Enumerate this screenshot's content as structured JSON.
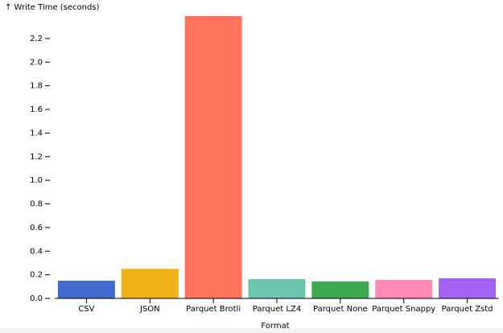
{
  "chart_data": {
    "type": "bar",
    "y_label": "↑ Write Time (seconds)",
    "x_label": "Format",
    "categories": [
      "CSV",
      "JSON",
      "Parquet Brotli",
      "Parquet LZ4",
      "Parquet None",
      "Parquet Snappy",
      "Parquet Zstd"
    ],
    "values": [
      0.15,
      0.25,
      2.39,
      0.163,
      0.143,
      0.157,
      0.17
    ],
    "colors": [
      "#4269d0",
      "#efb118",
      "#ff725c",
      "#6cc5b0",
      "#3ca951",
      "#ff8ab7",
      "#a463f2"
    ],
    "ylim": [
      0,
      2.39
    ],
    "yticks": [
      {
        "value": 0,
        "label": "0.0"
      },
      0.2,
      0.4,
      0.6,
      0.8,
      {
        "value": 1,
        "label": "1.0"
      },
      1.2,
      1.4,
      1.6,
      1.8,
      {
        "value": 2,
        "label": "2.0"
      },
      2.2
    ]
  }
}
